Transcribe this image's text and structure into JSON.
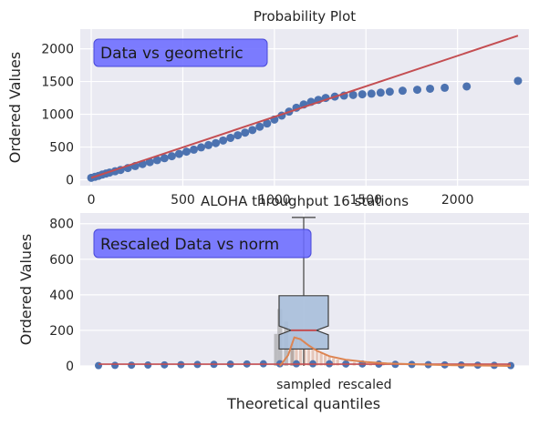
{
  "chart_data": [
    {
      "type": "scatter",
      "title": "Probability Plot",
      "xlabel": "",
      "ylabel": "Ordered Values",
      "annotation": "Data vs geometric",
      "xlim": [
        -60,
        2390
      ],
      "ylim": [
        -90,
        2300
      ],
      "xticks": [
        0,
        500,
        1000,
        1500,
        2000
      ],
      "xtick_labels": [
        "0",
        "500",
        "1000",
        "1500",
        "2000"
      ],
      "yticks": [
        0,
        500,
        1000,
        1500,
        2000
      ],
      "ytick_labels": [
        "0",
        "500",
        "1000",
        "1500",
        "2000"
      ],
      "grid": true,
      "fit_line": {
        "x": [
          0,
          2330
        ],
        "y": [
          30,
          2200
        ],
        "color": "#c44e52"
      },
      "series": [
        {
          "marker_color": "#4c72b0",
          "points": [
            [
              0,
              30
            ],
            [
              20,
              45
            ],
            [
              40,
              60
            ],
            [
              60,
              80
            ],
            [
              80,
              95
            ],
            [
              100,
              110
            ],
            [
              130,
              130
            ],
            [
              160,
              150
            ],
            [
              200,
              180
            ],
            [
              240,
              210
            ],
            [
              280,
              240
            ],
            [
              320,
              270
            ],
            [
              360,
              300
            ],
            [
              400,
              330
            ],
            [
              440,
              360
            ],
            [
              480,
              395
            ],
            [
              520,
              430
            ],
            [
              560,
              460
            ],
            [
              600,
              495
            ],
            [
              640,
              530
            ],
            [
              680,
              560
            ],
            [
              720,
              600
            ],
            [
              760,
              640
            ],
            [
              800,
              680
            ],
            [
              840,
              720
            ],
            [
              880,
              760
            ],
            [
              920,
              810
            ],
            [
              960,
              860
            ],
            [
              1000,
              920
            ],
            [
              1040,
              980
            ],
            [
              1080,
              1040
            ],
            [
              1120,
              1100
            ],
            [
              1160,
              1150
            ],
            [
              1200,
              1190
            ],
            [
              1240,
              1220
            ],
            [
              1280,
              1250
            ],
            [
              1330,
              1270
            ],
            [
              1380,
              1285
            ],
            [
              1430,
              1295
            ],
            [
              1480,
              1305
            ],
            [
              1530,
              1315
            ],
            [
              1580,
              1330
            ],
            [
              1630,
              1345
            ],
            [
              1700,
              1360
            ],
            [
              1780,
              1375
            ],
            [
              1850,
              1390
            ],
            [
              1930,
              1405
            ],
            [
              2050,
              1425
            ],
            [
              2330,
              1510
            ]
          ]
        }
      ]
    },
    {
      "type": "box",
      "title": "ALOHA throughput 16 stations",
      "xlabel": "Theoretical quantiles",
      "ylabel": "Ordered Values",
      "annotation": "Rescaled Data vs norm",
      "ylim": [
        0,
        860
      ],
      "yticks": [
        0,
        200,
        400,
        600,
        800
      ],
      "ytick_labels": [
        "0",
        "200",
        "400",
        "600",
        "800"
      ],
      "categories": [
        "sampled",
        "rescaled"
      ],
      "grid": true,
      "box": {
        "whisker_low": 0,
        "q1": 95,
        "median": 200,
        "q3": 395,
        "whisker_high": 835,
        "notch_low": 175,
        "notch_high": 225,
        "fill": "#a9bfda",
        "median_color": "#c44e52"
      },
      "histogram": {
        "color": "#dd8452",
        "bins": [
          {
            "x": 0.47,
            "h": 140
          },
          {
            "x": 0.48,
            "h": 175
          },
          {
            "x": 0.49,
            "h": 165
          },
          {
            "x": 0.5,
            "h": 145
          },
          {
            "x": 0.51,
            "h": 120
          },
          {
            "x": 0.52,
            "h": 100
          },
          {
            "x": 0.53,
            "h": 85
          },
          {
            "x": 0.54,
            "h": 72
          },
          {
            "x": 0.55,
            "h": 62
          },
          {
            "x": 0.56,
            "h": 52
          },
          {
            "x": 0.57,
            "h": 45
          },
          {
            "x": 0.58,
            "h": 38
          },
          {
            "x": 0.6,
            "h": 30
          },
          {
            "x": 0.62,
            "h": 24
          },
          {
            "x": 0.64,
            "h": 18
          },
          {
            "x": 0.66,
            "h": 14
          },
          {
            "x": 0.69,
            "h": 10
          },
          {
            "x": 0.72,
            "h": 7
          },
          {
            "x": 0.75,
            "h": 5
          }
        ]
      },
      "kde": {
        "color": "#dd8452",
        "points": [
          [
            0.44,
            0
          ],
          [
            0.46,
            60
          ],
          [
            0.475,
            160
          ],
          [
            0.49,
            150
          ],
          [
            0.51,
            115
          ],
          [
            0.53,
            85
          ],
          [
            0.56,
            55
          ],
          [
            0.6,
            35
          ],
          [
            0.65,
            22
          ],
          [
            0.7,
            14
          ],
          [
            0.78,
            8
          ],
          [
            0.86,
            4
          ],
          [
            0.94,
            2
          ],
          [
            1.0,
            0
          ]
        ]
      },
      "grey_bars": [
        {
          "x": 0.44,
          "h": 320,
          "w": 0.012
        },
        {
          "x": 0.455,
          "h": 250,
          "w": 0.01
        },
        {
          "x": 0.43,
          "h": 180,
          "w": 0.008
        },
        {
          "x": 0.47,
          "h": 120,
          "w": 0.01
        }
      ],
      "flat_points": {
        "color": "#4c72b0",
        "x": [
          0.0,
          0.04,
          0.08,
          0.12,
          0.16,
          0.2,
          0.24,
          0.28,
          0.32,
          0.36,
          0.4,
          0.44,
          0.48,
          0.52,
          0.56,
          0.6,
          0.64,
          0.68,
          0.72,
          0.76,
          0.8,
          0.84,
          0.88,
          0.92,
          0.96,
          1.0
        ],
        "y": [
          2,
          3,
          4,
          5,
          6,
          7,
          8,
          9,
          10,
          11,
          12,
          12,
          12,
          12,
          12,
          11,
          11,
          10,
          9,
          8,
          7,
          6,
          5,
          4,
          3,
          2
        ]
      },
      "flat_line": {
        "x": [
          0,
          1
        ],
        "y": [
          10,
          10
        ],
        "color": "#c44e52"
      }
    }
  ]
}
